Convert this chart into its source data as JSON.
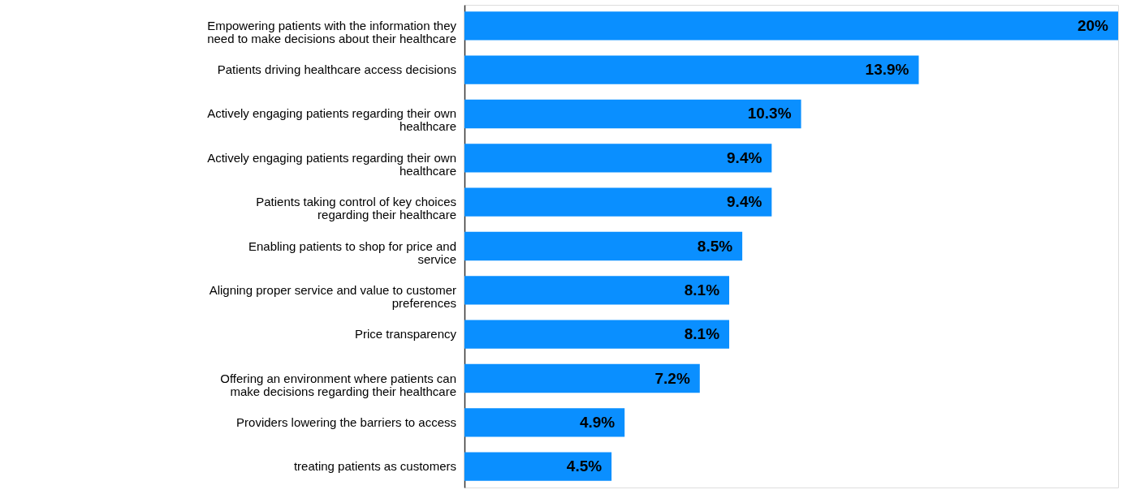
{
  "chart_data": {
    "type": "bar",
    "orientation": "horizontal",
    "data_labels": true,
    "tick_labels": "y",
    "color": "#0a8fff",
    "categories": [
      "Empowering patients with the information they need to make decisions about their healthcare",
      "Patients driving healthcare access decisions",
      "Actively engaging patients regarding their own healthcare",
      "Actively engaging patients regarding their own healthcare",
      "Patients taking control of key choices regarding their healthcare",
      "Enabling patients to shop for price and service",
      "Aligning proper service and value to customer preferences",
      "Price transparency",
      "Offering an environment where patients can make decisions regarding their healthcare",
      "Providers lowering the barriers to access",
      "treating patients as customers"
    ],
    "values": [
      20,
      13.9,
      10.3,
      9.4,
      9.4,
      8.5,
      8.1,
      8.1,
      7.2,
      4.9,
      4.5
    ],
    "value_labels": [
      "20%",
      "13.9%",
      "10.3%",
      "9.4%",
      "9.4%",
      "8.5%",
      "8.1%",
      "8.1%",
      "7.2%",
      "4.9%",
      "4.5%"
    ]
  }
}
